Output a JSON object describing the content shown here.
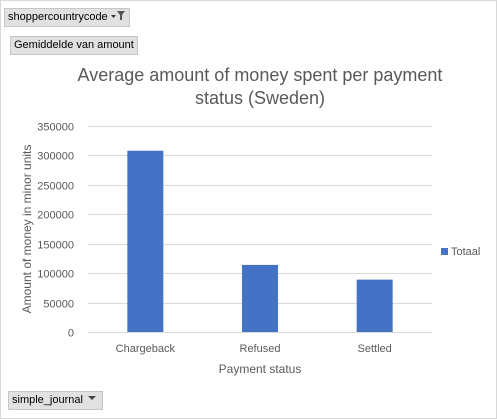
{
  "filters": {
    "country_field": "shoppercountrycode",
    "measure_field": "Gemiddelde van amount",
    "journal_field": "simple_journal"
  },
  "colors": {
    "bar": "#4472c4",
    "axis_text": "#595959",
    "grid": "#d9d9d9",
    "button_bg": "#e1e1e1"
  },
  "icons": {
    "country_filter": "filter-dropdown-icon",
    "journal_filter": "dropdown-arrow-icon"
  },
  "chart_data": {
    "type": "bar",
    "title": "Average amount of money spent per payment status (Sweden)",
    "title_lines": [
      "Average amount of money spent per payment",
      "status (Sweden)"
    ],
    "xlabel": "Payment status",
    "ylabel": "Amount of money in minor units",
    "categories": [
      "Chargeback",
      "Refused",
      "Settled"
    ],
    "series": [
      {
        "name": "Totaal",
        "values": [
          308000,
          114000,
          89000
        ]
      }
    ],
    "ylim": [
      0,
      350000
    ],
    "yticks": [
      0,
      50000,
      100000,
      150000,
      200000,
      250000,
      300000,
      350000
    ],
    "grid": true,
    "legend_position": "right"
  }
}
